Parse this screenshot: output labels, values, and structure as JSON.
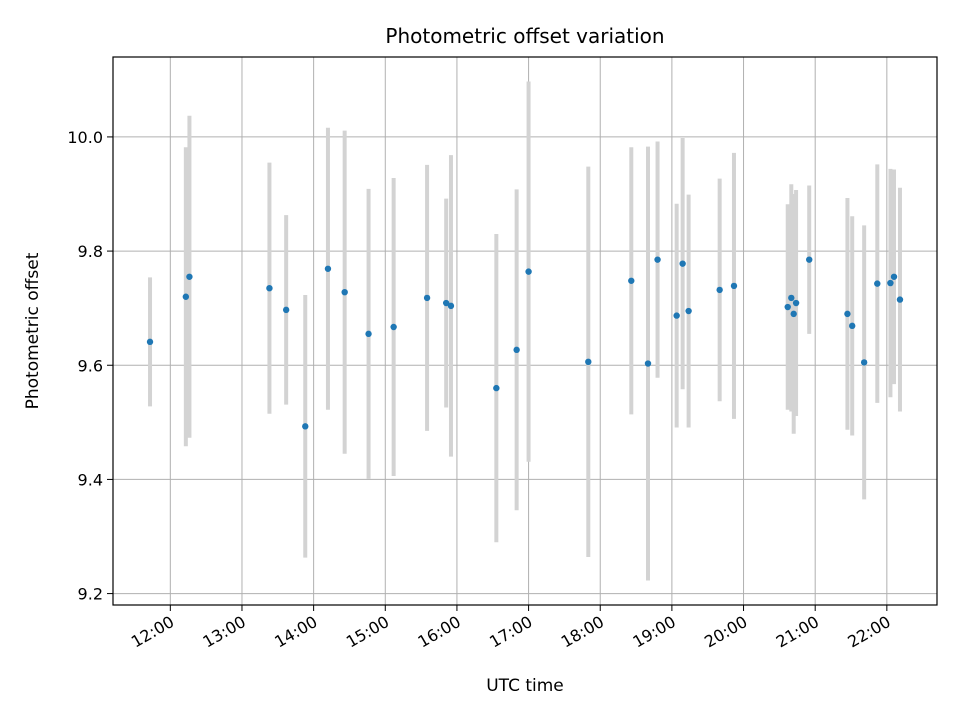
{
  "chart_data": {
    "type": "scatter",
    "title": "Photometric offset variation",
    "xlabel": "UTC time",
    "ylabel": "Photometric offset",
    "x_ticks": [
      "12:00",
      "13:00",
      "14:00",
      "15:00",
      "16:00",
      "17:00",
      "18:00",
      "19:00",
      "20:00",
      "21:00",
      "22:00"
    ],
    "y_ticks": [
      "9.2",
      "9.4",
      "9.6",
      "9.8",
      "10.0"
    ],
    "xlim": [
      "11:12",
      "22:42"
    ],
    "ylim": [
      9.18,
      10.14
    ],
    "grid": true,
    "point_color": "#1f77b4",
    "errorbar_color": "#d3d3d3",
    "points": [
      {
        "x": "11:43",
        "y": 9.641,
        "err": 0.113
      },
      {
        "x": "12:13",
        "y": 9.72,
        "err": 0.262
      },
      {
        "x": "12:16",
        "y": 9.755,
        "err": 0.282
      },
      {
        "x": "13:23",
        "y": 9.735,
        "err": 0.22
      },
      {
        "x": "13:37",
        "y": 9.697,
        "err": 0.166
      },
      {
        "x": "13:53",
        "y": 9.493,
        "err": 0.23
      },
      {
        "x": "14:12",
        "y": 9.769,
        "err": 0.247
      },
      {
        "x": "14:26",
        "y": 9.728,
        "err": 0.283
      },
      {
        "x": "14:46",
        "y": 9.655,
        "err": 0.254
      },
      {
        "x": "15:07",
        "y": 9.667,
        "err": 0.261
      },
      {
        "x": "15:35",
        "y": 9.718,
        "err": 0.233
      },
      {
        "x": "15:51",
        "y": 9.709,
        "err": 0.183
      },
      {
        "x": "15:55",
        "y": 9.704,
        "err": 0.264
      },
      {
        "x": "16:33",
        "y": 9.56,
        "err": 0.27
      },
      {
        "x": "16:50",
        "y": 9.627,
        "err": 0.281
      },
      {
        "x": "17:00",
        "y": 9.764,
        "err": 0.333
      },
      {
        "x": "17:50",
        "y": 9.606,
        "err": 0.342
      },
      {
        "x": "18:26",
        "y": 9.748,
        "err": 0.234
      },
      {
        "x": "18:40",
        "y": 9.603,
        "err": 0.38
      },
      {
        "x": "18:48",
        "y": 9.785,
        "err": 0.207
      },
      {
        "x": "19:04",
        "y": 9.687,
        "err": 0.196
      },
      {
        "x": "19:09",
        "y": 9.778,
        "err": 0.22
      },
      {
        "x": "19:14",
        "y": 9.695,
        "err": 0.204
      },
      {
        "x": "19:40",
        "y": 9.732,
        "err": 0.195
      },
      {
        "x": "19:52",
        "y": 9.739,
        "err": 0.233
      },
      {
        "x": "20:37",
        "y": 9.702,
        "err": 0.18
      },
      {
        "x": "20:40",
        "y": 9.718,
        "err": 0.199
      },
      {
        "x": "20:42",
        "y": 9.69,
        "err": 0.21
      },
      {
        "x": "20:44",
        "y": 9.709,
        "err": 0.198
      },
      {
        "x": "20:55",
        "y": 9.785,
        "err": 0.13
      },
      {
        "x": "21:27",
        "y": 9.69,
        "err": 0.203
      },
      {
        "x": "21:31",
        "y": 9.669,
        "err": 0.192
      },
      {
        "x": "21:41",
        "y": 9.605,
        "err": 0.24
      },
      {
        "x": "21:52",
        "y": 9.743,
        "err": 0.209
      },
      {
        "x": "22:03",
        "y": 9.744,
        "err": 0.2
      },
      {
        "x": "22:06",
        "y": 9.755,
        "err": 0.188
      },
      {
        "x": "22:11",
        "y": 9.715,
        "err": 0.196
      }
    ]
  }
}
